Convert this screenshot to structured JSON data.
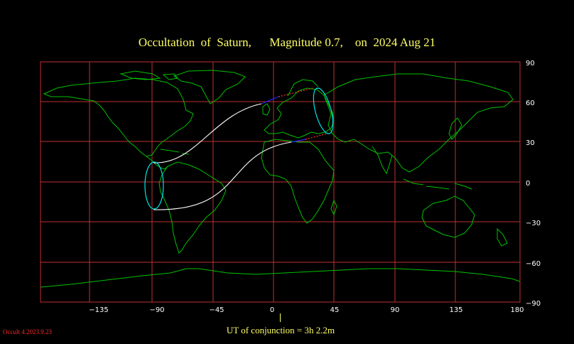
{
  "title": "Occultation  of  Saturn,      Magnitude 0.7,    on  2024 Aug 21",
  "map": {
    "lon_labels": [
      "−135",
      "−90",
      "−45",
      "0",
      "45",
      "90",
      "135",
      "180"
    ],
    "lat_labels": [
      "90",
      "60",
      "30",
      "0",
      "−30",
      "−60",
      "−90"
    ],
    "colors": {
      "grid": "#c03030",
      "coast": "#00c000",
      "path": "#ffffff",
      "limit_curve": "#00e5e5",
      "daylight_segment": "#2020ff",
      "twilight_segment": "#ff3030"
    }
  },
  "ut_label": "UT of conjunction =  3h  2.2m",
  "version": "Occult 4.2023.9.23"
}
